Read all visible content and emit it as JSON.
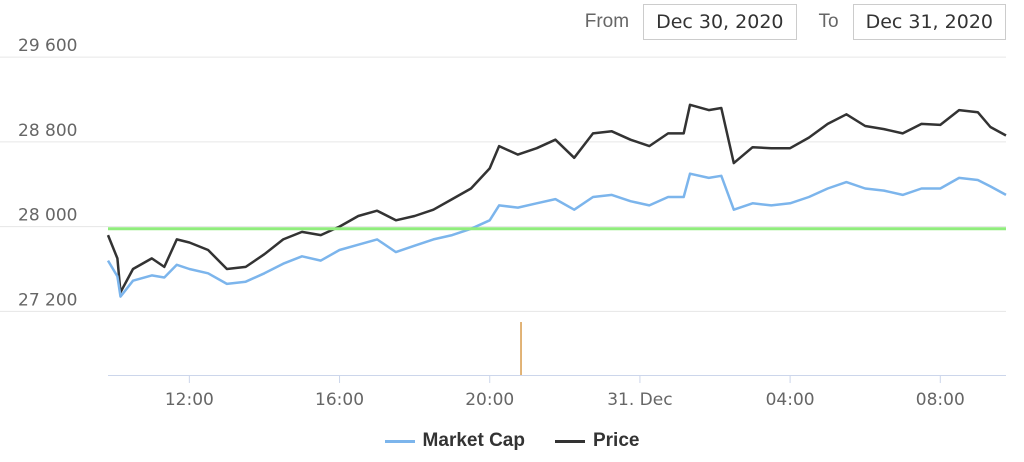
{
  "range": {
    "from_label": "From",
    "from_value": "Dec 30, 2020",
    "to_label": "To",
    "to_value": "Dec 31, 2020"
  },
  "colors": {
    "market_cap": "#7cb5ec",
    "price": "#333333",
    "reference": "#90ed7d",
    "event_marker": "#d89a4a",
    "grid": "#e6e6e6"
  },
  "chart_data": {
    "type": "line",
    "title": "",
    "xlabel": "",
    "ylabel": "",
    "x_ticks": [
      "12:00",
      "16:00",
      "20:00",
      "31. Dec",
      "04:00",
      "08:00"
    ],
    "y_ticks": [
      "27 200",
      "28 000",
      "28 800",
      "29 600"
    ],
    "y_tick_values": [
      27200,
      28000,
      28800,
      29600
    ],
    "ylim": [
      26600,
      29950
    ],
    "xlim": [
      "2020-12-30 09:50",
      "2020-12-31 09:45"
    ],
    "grid": "horizontal",
    "legend_position": "bottom-center",
    "reference_line": {
      "y": 27980
    },
    "event_marker": {
      "x": "2020-12-30 20:50",
      "y_from": 26600,
      "y_to": 27100
    },
    "series": [
      {
        "name": "Price",
        "points": [
          [
            "2020-12-30 09:50",
            27920
          ],
          [
            "2020-12-30 10:05",
            27700
          ],
          [
            "2020-12-30 10:10",
            27380
          ],
          [
            "2020-12-30 10:30",
            27600
          ],
          [
            "2020-12-30 11:00",
            27700
          ],
          [
            "2020-12-30 11:20",
            27620
          ],
          [
            "2020-12-30 11:40",
            27880
          ],
          [
            "2020-12-30 12:00",
            27850
          ],
          [
            "2020-12-30 12:30",
            27780
          ],
          [
            "2020-12-30 13:00",
            27600
          ],
          [
            "2020-12-30 13:30",
            27620
          ],
          [
            "2020-12-30 14:00",
            27740
          ],
          [
            "2020-12-30 14:30",
            27880
          ],
          [
            "2020-12-30 15:00",
            27950
          ],
          [
            "2020-12-30 15:30",
            27920
          ],
          [
            "2020-12-30 16:00",
            28000
          ],
          [
            "2020-12-30 16:30",
            28100
          ],
          [
            "2020-12-30 17:00",
            28150
          ],
          [
            "2020-12-30 17:30",
            28060
          ],
          [
            "2020-12-30 18:00",
            28100
          ],
          [
            "2020-12-30 18:30",
            28160
          ],
          [
            "2020-12-30 19:00",
            28260
          ],
          [
            "2020-12-30 19:30",
            28360
          ],
          [
            "2020-12-30 20:00",
            28550
          ],
          [
            "2020-12-30 20:15",
            28760
          ],
          [
            "2020-12-30 20:45",
            28680
          ],
          [
            "2020-12-30 21:15",
            28740
          ],
          [
            "2020-12-30 21:45",
            28820
          ],
          [
            "2020-12-30 22:15",
            28650
          ],
          [
            "2020-12-30 22:45",
            28880
          ],
          [
            "2020-12-30 23:15",
            28900
          ],
          [
            "2020-12-30 23:45",
            28820
          ],
          [
            "2020-12-31 00:15",
            28760
          ],
          [
            "2020-12-31 00:45",
            28880
          ],
          [
            "2020-12-31 01:10",
            28880
          ],
          [
            "2020-12-31 01:20",
            29150
          ],
          [
            "2020-12-31 01:50",
            29100
          ],
          [
            "2020-12-31 02:10",
            29120
          ],
          [
            "2020-12-31 02:30",
            28600
          ],
          [
            "2020-12-31 03:00",
            28750
          ],
          [
            "2020-12-31 03:30",
            28740
          ],
          [
            "2020-12-31 04:00",
            28740
          ],
          [
            "2020-12-31 04:30",
            28840
          ],
          [
            "2020-12-31 05:00",
            28970
          ],
          [
            "2020-12-31 05:30",
            29060
          ],
          [
            "2020-12-31 06:00",
            28950
          ],
          [
            "2020-12-31 06:30",
            28920
          ],
          [
            "2020-12-31 07:00",
            28880
          ],
          [
            "2020-12-31 07:30",
            28970
          ],
          [
            "2020-12-31 08:00",
            28960
          ],
          [
            "2020-12-31 08:30",
            29100
          ],
          [
            "2020-12-31 09:00",
            29080
          ],
          [
            "2020-12-31 09:20",
            28940
          ],
          [
            "2020-12-31 09:45",
            28860
          ]
        ]
      },
      {
        "name": "Market Cap",
        "points": [
          [
            "2020-12-30 09:50",
            27680
          ],
          [
            "2020-12-30 10:05",
            27530
          ],
          [
            "2020-12-30 10:10",
            27340
          ],
          [
            "2020-12-30 10:30",
            27490
          ],
          [
            "2020-12-30 11:00",
            27540
          ],
          [
            "2020-12-30 11:20",
            27520
          ],
          [
            "2020-12-30 11:40",
            27640
          ],
          [
            "2020-12-30 12:00",
            27600
          ],
          [
            "2020-12-30 12:30",
            27560
          ],
          [
            "2020-12-30 13:00",
            27460
          ],
          [
            "2020-12-30 13:30",
            27480
          ],
          [
            "2020-12-30 14:00",
            27560
          ],
          [
            "2020-12-30 14:30",
            27650
          ],
          [
            "2020-12-30 15:00",
            27720
          ],
          [
            "2020-12-30 15:30",
            27680
          ],
          [
            "2020-12-30 16:00",
            27780
          ],
          [
            "2020-12-30 16:30",
            27830
          ],
          [
            "2020-12-30 17:00",
            27880
          ],
          [
            "2020-12-30 17:30",
            27760
          ],
          [
            "2020-12-30 18:00",
            27820
          ],
          [
            "2020-12-30 18:30",
            27880
          ],
          [
            "2020-12-30 19:00",
            27920
          ],
          [
            "2020-12-30 19:30",
            27980
          ],
          [
            "2020-12-30 20:00",
            28060
          ],
          [
            "2020-12-30 20:15",
            28200
          ],
          [
            "2020-12-30 20:45",
            28180
          ],
          [
            "2020-12-30 21:15",
            28220
          ],
          [
            "2020-12-30 21:45",
            28260
          ],
          [
            "2020-12-30 22:15",
            28160
          ],
          [
            "2020-12-30 22:45",
            28280
          ],
          [
            "2020-12-30 23:15",
            28300
          ],
          [
            "2020-12-30 23:45",
            28240
          ],
          [
            "2020-12-31 00:15",
            28200
          ],
          [
            "2020-12-31 00:45",
            28280
          ],
          [
            "2020-12-31 01:10",
            28280
          ],
          [
            "2020-12-31 01:20",
            28500
          ],
          [
            "2020-12-31 01:50",
            28460
          ],
          [
            "2020-12-31 02:10",
            28480
          ],
          [
            "2020-12-31 02:30",
            28160
          ],
          [
            "2020-12-31 03:00",
            28220
          ],
          [
            "2020-12-31 03:30",
            28200
          ],
          [
            "2020-12-31 04:00",
            28220
          ],
          [
            "2020-12-31 04:30",
            28280
          ],
          [
            "2020-12-31 05:00",
            28360
          ],
          [
            "2020-12-31 05:30",
            28420
          ],
          [
            "2020-12-31 06:00",
            28360
          ],
          [
            "2020-12-31 06:30",
            28340
          ],
          [
            "2020-12-31 07:00",
            28300
          ],
          [
            "2020-12-31 07:30",
            28360
          ],
          [
            "2020-12-31 08:00",
            28360
          ],
          [
            "2020-12-31 08:30",
            28460
          ],
          [
            "2020-12-31 09:00",
            28440
          ],
          [
            "2020-12-31 09:20",
            28380
          ],
          [
            "2020-12-31 09:45",
            28300
          ]
        ]
      }
    ]
  },
  "legend": {
    "market_cap_label": "Market Cap",
    "price_label": "Price"
  }
}
